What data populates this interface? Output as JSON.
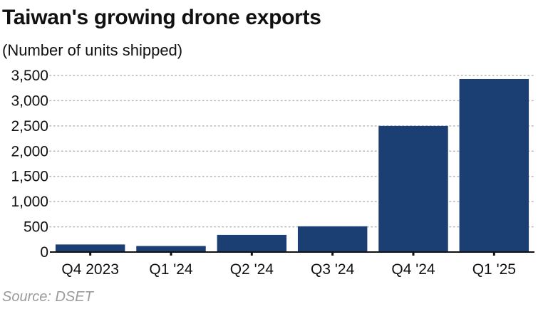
{
  "chart_data": {
    "type": "bar",
    "title": "Taiwan's growing drone exports",
    "subtitle": "(Number of units shipped)",
    "categories": [
      "Q4 2023",
      "Q1 '24",
      "Q2 '24",
      "Q3 '24",
      "Q4 '24",
      "Q1 '25"
    ],
    "values": [
      150,
      120,
      340,
      510,
      2500,
      3430
    ],
    "ylim": [
      0,
      3500
    ],
    "yticks": [
      0,
      500,
      1000,
      1500,
      2000,
      2500,
      3000,
      3500
    ],
    "ytick_labels": [
      "0",
      "500",
      "1,000",
      "1,500",
      "2,000",
      "2,500",
      "3,000",
      "3,500"
    ],
    "xlabel": "",
    "ylabel": "",
    "grid": "horizontal dotted",
    "bar_color": "#1b3f73",
    "source": "Source: DSET"
  }
}
